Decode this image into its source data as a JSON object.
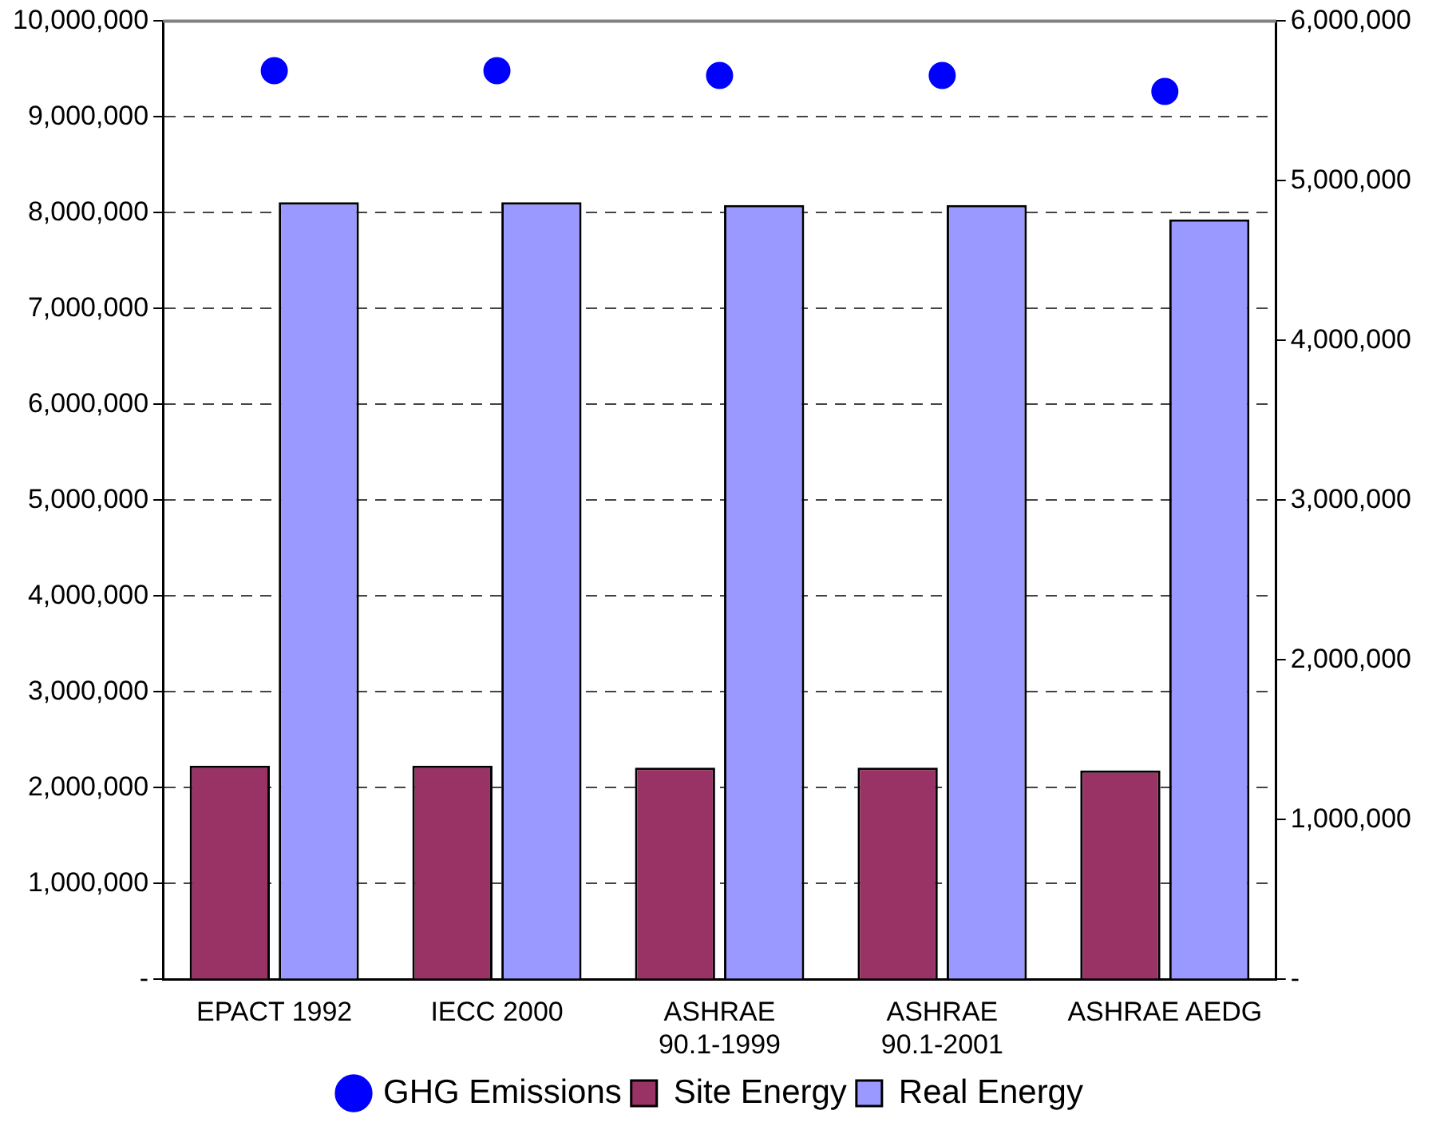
{
  "chart_data": {
    "type": "bar",
    "categories": [
      "EPACT 1992",
      "IECC 2000",
      "ASHRAE 90.1-1999",
      "ASHRAE 90.1-2001",
      "ASHRAE AEDG"
    ],
    "series": [
      {
        "name": "Site Energy",
        "color": "#993366",
        "values": [
          2230000,
          2230000,
          2210000,
          2210000,
          2180000
        ]
      },
      {
        "name": "Real Energy",
        "color": "#9999ff",
        "values": [
          8110000,
          8110000,
          8080000,
          8080000,
          7930000
        ]
      },
      {
        "name": "GHG Emissions",
        "type": "scatter",
        "axis": "y2",
        "color": "#0000ff",
        "values": [
          5690000,
          5690000,
          5660000,
          5660000,
          5560000
        ]
      }
    ],
    "ylim": [
      0,
      10000000
    ],
    "yticks": [
      {
        "value": 0,
        "label": "-"
      },
      {
        "value": 1000000,
        "label": "1,000,000"
      },
      {
        "value": 2000000,
        "label": "2,000,000"
      },
      {
        "value": 3000000,
        "label": "3,000,000"
      },
      {
        "value": 4000000,
        "label": "4,000,000"
      },
      {
        "value": 5000000,
        "label": "5,000,000"
      },
      {
        "value": 6000000,
        "label": "6,000,000"
      },
      {
        "value": 7000000,
        "label": "7,000,000"
      },
      {
        "value": 8000000,
        "label": "8,000,000"
      },
      {
        "value": 9000000,
        "label": "9,000,000"
      },
      {
        "value": 10000000,
        "label": "10,000,000"
      }
    ],
    "y2lim": [
      0,
      6000000
    ],
    "y2ticks": [
      {
        "value": 0,
        "label": "-"
      },
      {
        "value": 1000000,
        "label": "1,000,000"
      },
      {
        "value": 2000000,
        "label": "2,000,000"
      },
      {
        "value": 3000000,
        "label": "3,000,000"
      },
      {
        "value": 4000000,
        "label": "4,000,000"
      },
      {
        "value": 5000000,
        "label": "5,000,000"
      },
      {
        "value": 6000000,
        "label": "6,000,000"
      }
    ],
    "grid": "y",
    "legend": "bottom",
    "marker": "circle"
  }
}
